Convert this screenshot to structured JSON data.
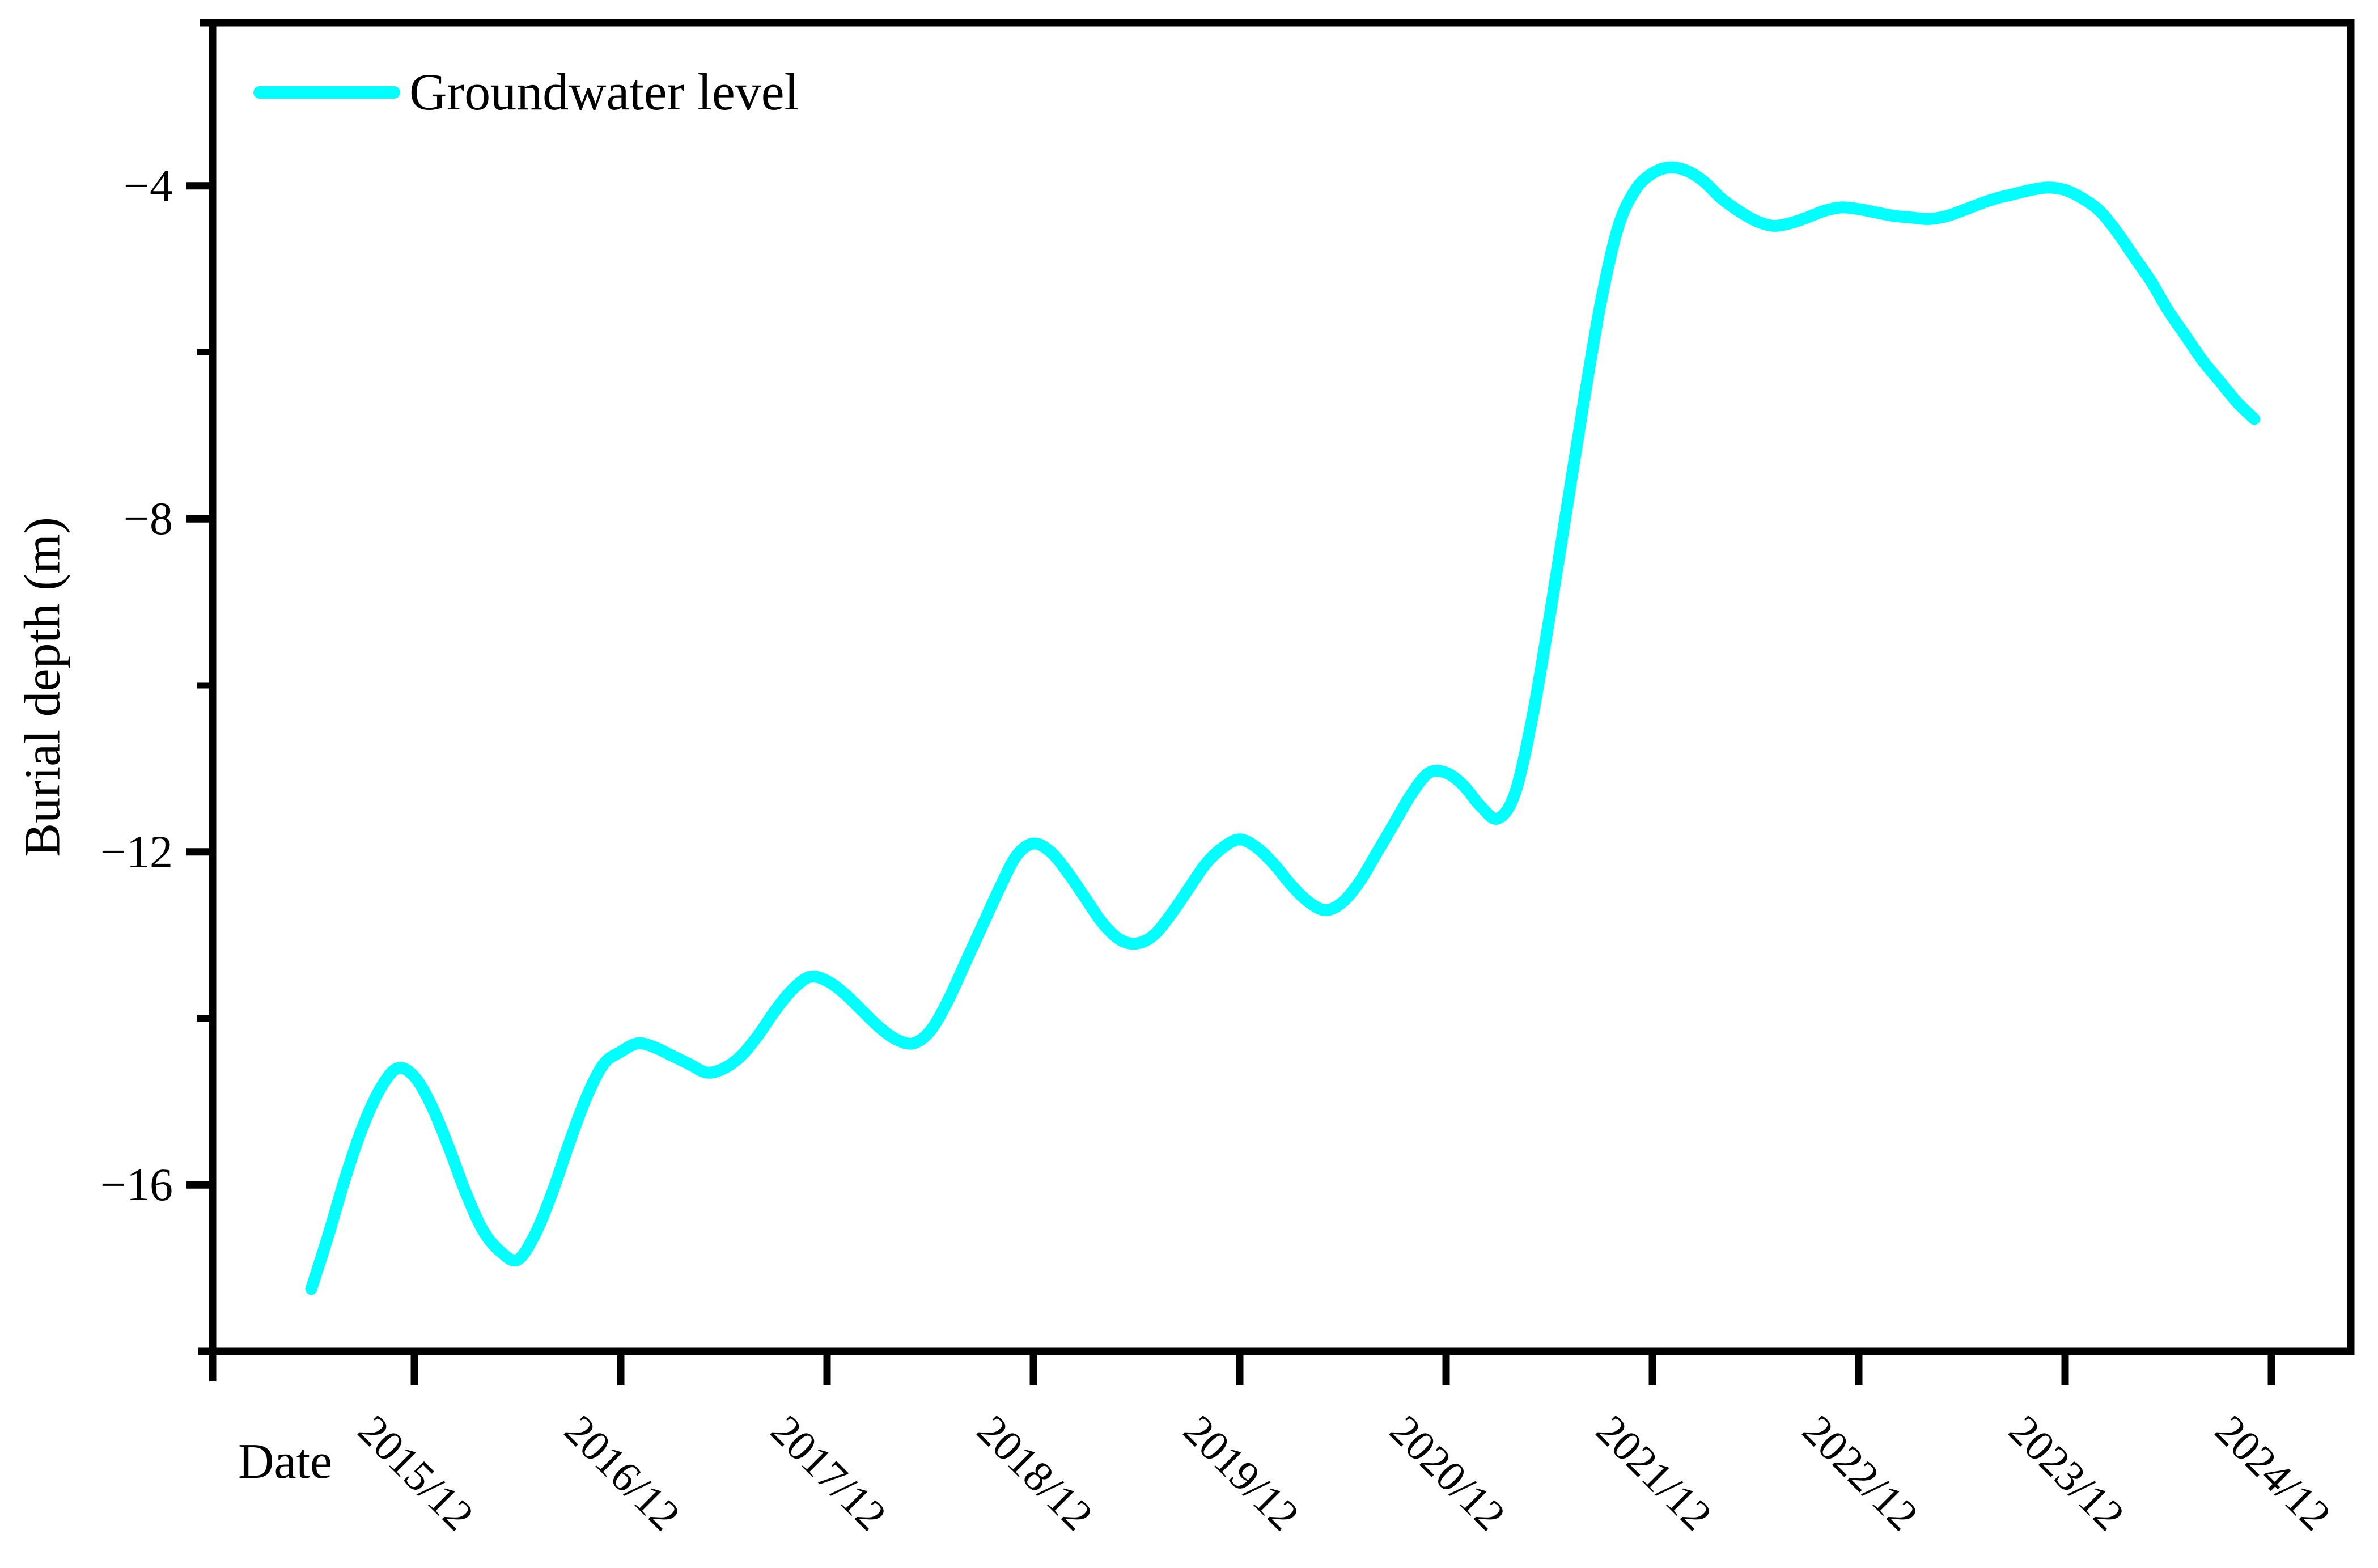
{
  "colors": {
    "line": "#00FFFF",
    "axis": "#000000",
    "background": "#FFFFFF",
    "text": "#000000"
  },
  "legend": {
    "label": "Groundwater level",
    "position": "top-left"
  },
  "chart_data": {
    "type": "line",
    "title": "",
    "xlabel": "Date",
    "ylabel": "Burial depth (m)",
    "grid": false,
    "ylim": [
      -18,
      -2
    ],
    "y_ticks": [
      {
        "value": -4,
        "label": "−4"
      },
      {
        "value": -8,
        "label": "−8"
      },
      {
        "value": -12,
        "label": "−12"
      },
      {
        "value": -16,
        "label": "−16"
      }
    ],
    "y_minor_ticks": [
      -6,
      -10,
      -14
    ],
    "x_tick_labels": [
      "2015/12",
      "2016/12",
      "2017/12",
      "2018/12",
      "2019/12",
      "2020/12",
      "2021/12",
      "2022/12",
      "2023/12",
      "2024/12"
    ],
    "series": [
      {
        "name": "Groundwater level",
        "color": "#00FFFF",
        "points": [
          [
            "2015/06",
            -17.25
          ],
          [
            "2015/07",
            -16.6
          ],
          [
            "2015/08",
            -15.9
          ],
          [
            "2015/09",
            -15.3
          ],
          [
            "2015/10",
            -14.85
          ],
          [
            "2015/11",
            -14.6
          ],
          [
            "2015/12",
            -14.7
          ],
          [
            "2016/01",
            -15.05
          ],
          [
            "2016/02",
            -15.55
          ],
          [
            "2016/03",
            -16.1
          ],
          [
            "2016/04",
            -16.55
          ],
          [
            "2016/05",
            -16.8
          ],
          [
            "2016/06",
            -16.9
          ],
          [
            "2016/07",
            -16.6
          ],
          [
            "2016/08",
            -16.1
          ],
          [
            "2016/09",
            -15.5
          ],
          [
            "2016/10",
            -14.95
          ],
          [
            "2016/11",
            -14.55
          ],
          [
            "2016/12",
            -14.4
          ],
          [
            "2017/01",
            -14.3
          ],
          [
            "2017/02",
            -14.35
          ],
          [
            "2017/03",
            -14.45
          ],
          [
            "2017/04",
            -14.55
          ],
          [
            "2017/05",
            -14.65
          ],
          [
            "2017/06",
            -14.6
          ],
          [
            "2017/07",
            -14.45
          ],
          [
            "2017/08",
            -14.2
          ],
          [
            "2017/09",
            -13.9
          ],
          [
            "2017/10",
            -13.65
          ],
          [
            "2017/11",
            -13.5
          ],
          [
            "2017/12",
            -13.55
          ],
          [
            "2018/01",
            -13.7
          ],
          [
            "2018/02",
            -13.9
          ],
          [
            "2018/03",
            -14.1
          ],
          [
            "2018/04",
            -14.25
          ],
          [
            "2018/05",
            -14.3
          ],
          [
            "2018/06",
            -14.15
          ],
          [
            "2018/07",
            -13.8
          ],
          [
            "2018/08",
            -13.35
          ],
          [
            "2018/09",
            -12.9
          ],
          [
            "2018/10",
            -12.45
          ],
          [
            "2018/11",
            -12.05
          ],
          [
            "2018/12",
            -11.9
          ],
          [
            "2019/01",
            -12.0
          ],
          [
            "2019/02",
            -12.25
          ],
          [
            "2019/03",
            -12.55
          ],
          [
            "2019/04",
            -12.85
          ],
          [
            "2019/05",
            -13.05
          ],
          [
            "2019/06",
            -13.1
          ],
          [
            "2019/07",
            -13.0
          ],
          [
            "2019/08",
            -12.75
          ],
          [
            "2019/09",
            -12.45
          ],
          [
            "2019/10",
            -12.15
          ],
          [
            "2019/11",
            -11.95
          ],
          [
            "2019/12",
            -11.85
          ],
          [
            "2020/01",
            -11.95
          ],
          [
            "2020/02",
            -12.15
          ],
          [
            "2020/03",
            -12.4
          ],
          [
            "2020/04",
            -12.6
          ],
          [
            "2020/05",
            -12.7
          ],
          [
            "2020/06",
            -12.6
          ],
          [
            "2020/07",
            -12.35
          ],
          [
            "2020/08",
            -12.0
          ],
          [
            "2020/09",
            -11.65
          ],
          [
            "2020/10",
            -11.3
          ],
          [
            "2020/11",
            -11.05
          ],
          [
            "2020/12",
            -11.05
          ],
          [
            "2021/01",
            -11.2
          ],
          [
            "2021/02",
            -11.45
          ],
          [
            "2021/03",
            -11.6
          ],
          [
            "2021/04",
            -11.3
          ],
          [
            "2021/05",
            -10.4
          ],
          [
            "2021/06",
            -9.2
          ],
          [
            "2021/07",
            -7.9
          ],
          [
            "2021/08",
            -6.6
          ],
          [
            "2021/09",
            -5.4
          ],
          [
            "2021/10",
            -4.5
          ],
          [
            "2021/11",
            -4.05
          ],
          [
            "2021/12",
            -3.85
          ],
          [
            "2022/01",
            -3.78
          ],
          [
            "2022/02",
            -3.82
          ],
          [
            "2022/03",
            -3.95
          ],
          [
            "2022/04",
            -4.15
          ],
          [
            "2022/05",
            -4.3
          ],
          [
            "2022/06",
            -4.42
          ],
          [
            "2022/07",
            -4.48
          ],
          [
            "2022/08",
            -4.45
          ],
          [
            "2022/09",
            -4.38
          ],
          [
            "2022/10",
            -4.3
          ],
          [
            "2022/11",
            -4.26
          ],
          [
            "2022/12",
            -4.28
          ],
          [
            "2023/01",
            -4.32
          ],
          [
            "2023/02",
            -4.36
          ],
          [
            "2023/03",
            -4.38
          ],
          [
            "2023/04",
            -4.4
          ],
          [
            "2023/05",
            -4.37
          ],
          [
            "2023/06",
            -4.3
          ],
          [
            "2023/07",
            -4.22
          ],
          [
            "2023/08",
            -4.15
          ],
          [
            "2023/09",
            -4.1
          ],
          [
            "2023/10",
            -4.05
          ],
          [
            "2023/11",
            -4.02
          ],
          [
            "2023/12",
            -4.05
          ],
          [
            "2024/01",
            -4.15
          ],
          [
            "2024/02",
            -4.3
          ],
          [
            "2024/03",
            -4.55
          ],
          [
            "2024/04",
            -4.85
          ],
          [
            "2024/05",
            -5.15
          ],
          [
            "2024/06",
            -5.5
          ],
          [
            "2024/07",
            -5.8
          ],
          [
            "2024/08",
            -6.1
          ],
          [
            "2024/09",
            -6.35
          ],
          [
            "2024/10",
            -6.6
          ],
          [
            "2024/11",
            -6.8
          ]
        ]
      }
    ]
  }
}
